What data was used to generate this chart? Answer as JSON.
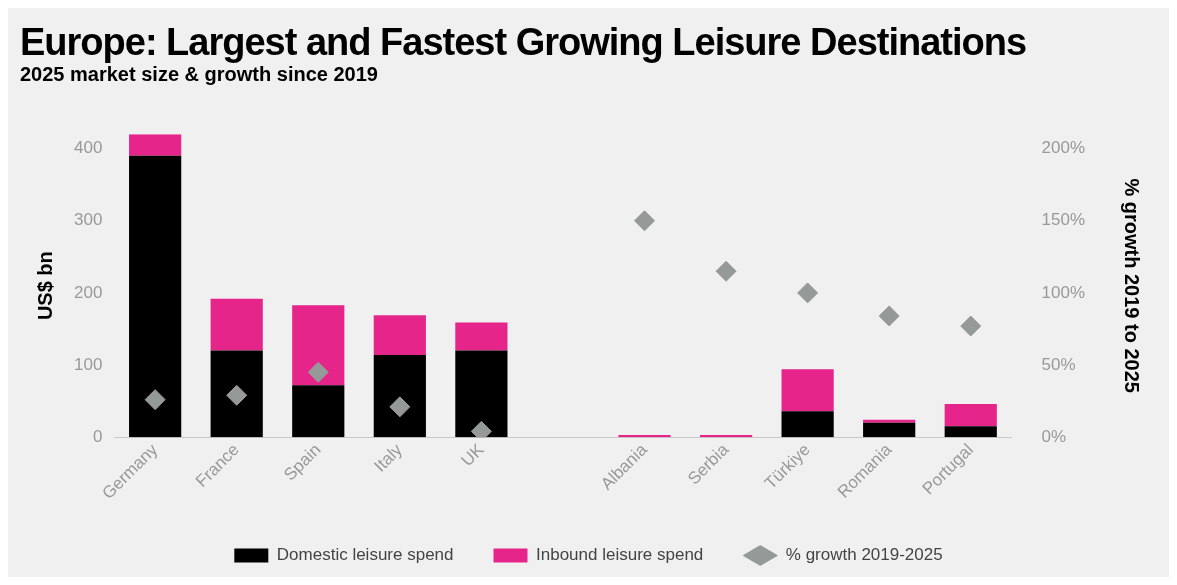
{
  "chart_data": {
    "type": "bar",
    "title": "Europe: Largest and Fastest Growing Leisure Destinations",
    "subtitle": "2025 market size & growth since 2019",
    "ylabel": "US$ bn",
    "y2label": "% growth 2019 to 2025",
    "categories": [
      "Germany",
      "France",
      "Spain",
      "Italy",
      "UK",
      null,
      "Albania",
      "Serbia",
      "Türkiye",
      "Romania",
      "Portugal"
    ],
    "stacked": true,
    "series": [
      {
        "name": "Domestic leisure spend",
        "color": "#000000",
        "values": [
          390,
          120,
          72,
          114,
          120,
          null,
          0,
          0,
          36,
          20,
          15
        ]
      },
      {
        "name": "Inbound leisure spend",
        "color": "#e6258a",
        "values": [
          30,
          72,
          111,
          55,
          39,
          null,
          3,
          3,
          58,
          4,
          31
        ]
      },
      {
        "name": "% growth 2019-2025",
        "type": "scatter",
        "axis": "y2",
        "color": "#959a99",
        "values": [
          26,
          29,
          45,
          21,
          4,
          null,
          150,
          115,
          100,
          84,
          77
        ]
      }
    ],
    "marker": "diamond",
    "ylim": [
      0,
      420
    ],
    "yticks": [
      0,
      100,
      200,
      300,
      400
    ],
    "y2lim": [
      0,
      210
    ],
    "y2ticks": [
      {
        "value": 0,
        "label": "0%"
      },
      {
        "value": 50,
        "label": "50%"
      },
      {
        "value": 100,
        "label": "100%"
      },
      {
        "value": 150,
        "label": "150%"
      },
      {
        "value": 200,
        "label": "200%"
      }
    ],
    "grid": false,
    "legend": "bottom"
  }
}
